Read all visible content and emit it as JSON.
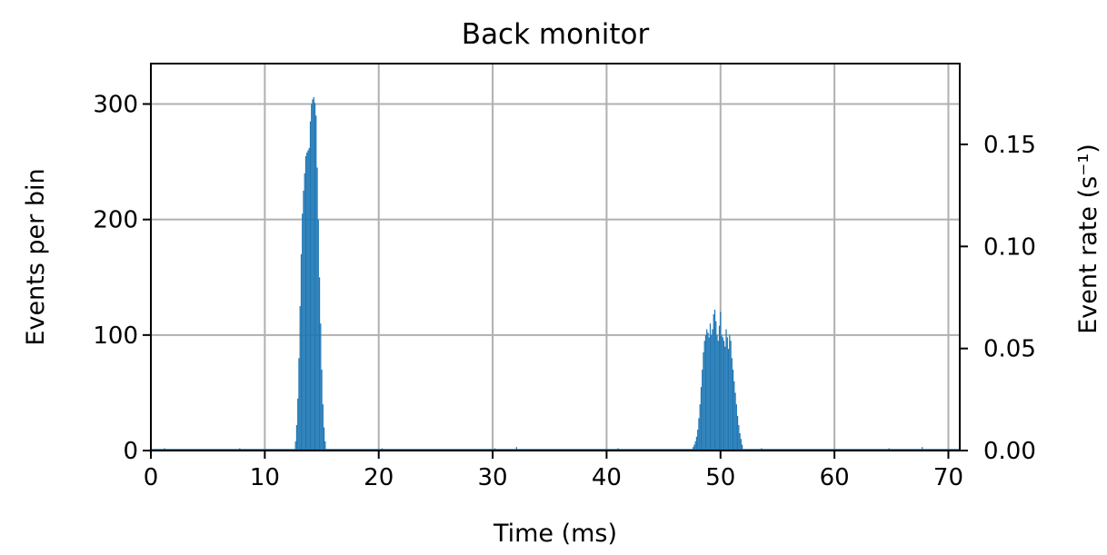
{
  "chart_data": {
    "type": "bar",
    "title": "Back monitor",
    "xlabel": "Time (ms)",
    "ylabel": "Events per bin",
    "y2label": "Event rate (s⁻¹)",
    "xlim": [
      0,
      71
    ],
    "ylim": [
      0,
      335
    ],
    "y2lim": [
      0,
      0.1896
    ],
    "xticks": [
      0,
      10,
      20,
      30,
      40,
      50,
      60,
      70
    ],
    "yticks": [
      0,
      100,
      200,
      300
    ],
    "y2ticks": [
      0,
      0.05,
      0.1,
      0.15
    ],
    "y2ticklabels": [
      "0.00",
      "0.05",
      "0.10",
      "0.15"
    ],
    "grid": true,
    "color": "#1f77b4",
    "series": [
      {
        "name": "",
        "peaks": [
          {
            "x": [
              12.7,
              12.8,
              12.9,
              13.0,
              13.1,
              13.2,
              13.3,
              13.4,
              13.5,
              13.6,
              13.7,
              13.8,
              13.9,
              14.0,
              14.1,
              14.2,
              14.3,
              14.4,
              14.5,
              14.6,
              14.7,
              14.8,
              14.9,
              15.0,
              15.1,
              15.2,
              15.3
            ],
            "values": [
              8,
              22,
              45,
              80,
              125,
              170,
              205,
              225,
              240,
              255,
              258,
              260,
              262,
              285,
              300,
              304,
              306,
              301,
              290,
              245,
              200,
              150,
              110,
              70,
              40,
              20,
              8
            ]
          },
          {
            "x": [
              47.6,
              47.7,
              47.8,
              47.9,
              48.0,
              48.1,
              48.2,
              48.3,
              48.4,
              48.5,
              48.6,
              48.7,
              48.8,
              48.9,
              49.0,
              49.1,
              49.2,
              49.3,
              49.4,
              49.5,
              49.6,
              49.7,
              49.8,
              49.9,
              50.0,
              50.1,
              50.2,
              50.3,
              50.4,
              50.5,
              50.6,
              50.7,
              50.8,
              50.9,
              51.0,
              51.1,
              51.2,
              51.3,
              51.4,
              51.5,
              51.6,
              51.7,
              51.8,
              51.9
            ],
            "values": [
              3,
              5,
              8,
              12,
              18,
              28,
              40,
              55,
              70,
              85,
              95,
              100,
              105,
              102,
              98,
              110,
              100,
              105,
              118,
              122,
              112,
              100,
              95,
              108,
              120,
              100,
              98,
              95,
              90,
              105,
              98,
              88,
              100,
              95,
              80,
              70,
              60,
              50,
              40,
              30,
              22,
              15,
              10,
              5
            ]
          }
        ],
        "baseline_noise": [
          {
            "x": 1.2,
            "value": 2
          },
          {
            "x": 3.5,
            "value": 1
          },
          {
            "x": 7.8,
            "value": 2
          },
          {
            "x": 9.4,
            "value": 1
          },
          {
            "x": 20.3,
            "value": 2
          },
          {
            "x": 24.6,
            "value": 1
          },
          {
            "x": 30.2,
            "value": 2
          },
          {
            "x": 32.1,
            "value": 3
          },
          {
            "x": 38.5,
            "value": 1
          },
          {
            "x": 41.0,
            "value": 2
          },
          {
            "x": 44.7,
            "value": 1
          },
          {
            "x": 53.6,
            "value": 2
          },
          {
            "x": 57.9,
            "value": 1
          },
          {
            "x": 61.3,
            "value": 1
          },
          {
            "x": 64.8,
            "value": 2
          },
          {
            "x": 67.7,
            "value": 3
          },
          {
            "x": 69.2,
            "value": 1
          }
        ]
      }
    ]
  }
}
